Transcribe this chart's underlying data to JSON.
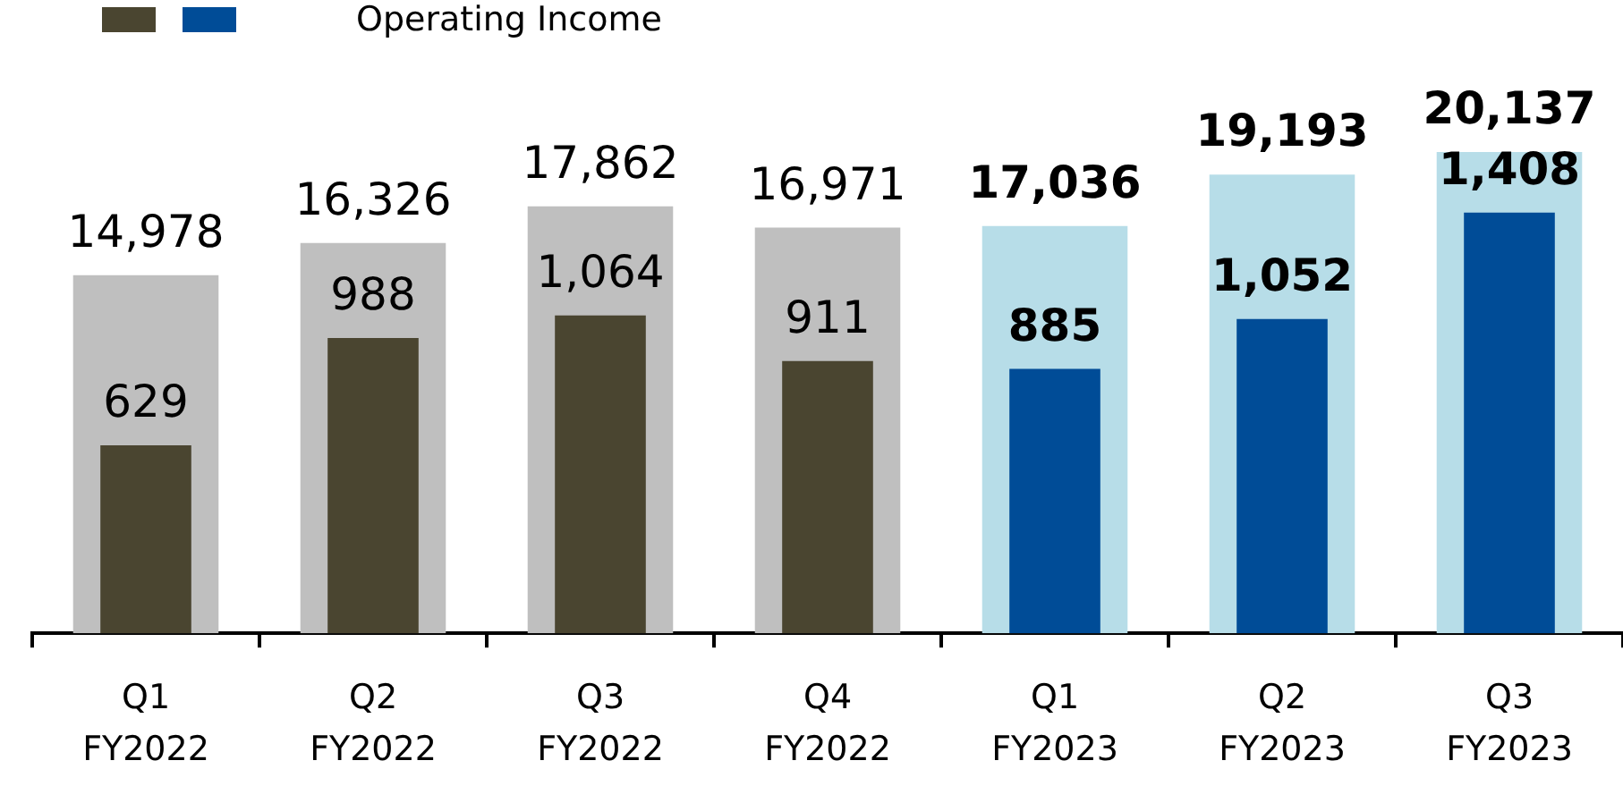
{
  "chart_data": {
    "type": "bar",
    "categories": [
      "Q1 FY2022",
      "Q2 FY2022",
      "Q3 FY2022",
      "Q4 FY2022",
      "Q1 FY2023",
      "Q2 FY2023",
      "Q3 FY2023"
    ],
    "series": [
      {
        "colors": [
          "#bfbfbf",
          "#bfbfbf",
          "#bfbfbf",
          "#bfbfbf",
          "#b7dde8",
          "#b7dde8",
          "#b7dde8"
        ],
        "values": [
          14978,
          16326,
          17862,
          16971,
          17036,
          19193,
          20137
        ],
        "value_labels": [
          "14,978",
          "16,326",
          "17,862",
          "16,971",
          "17,036",
          "19,193",
          "20,137"
        ]
      },
      {
        "name": "Operating Income",
        "axis": "y2",
        "colors": [
          "#4a4530",
          "#4a4530",
          "#4a4530",
          "#4a4530",
          "#004c97",
          "#004c97",
          "#004c97"
        ],
        "values": [
          629,
          988,
          1064,
          911,
          885,
          1052,
          1408
        ],
        "value_labels": [
          "629",
          "988",
          "1,064",
          "911",
          "885",
          "1,052",
          "1,408"
        ]
      }
    ],
    "tick_labels": "x",
    "grid": false,
    "legend": "top left"
  }
}
